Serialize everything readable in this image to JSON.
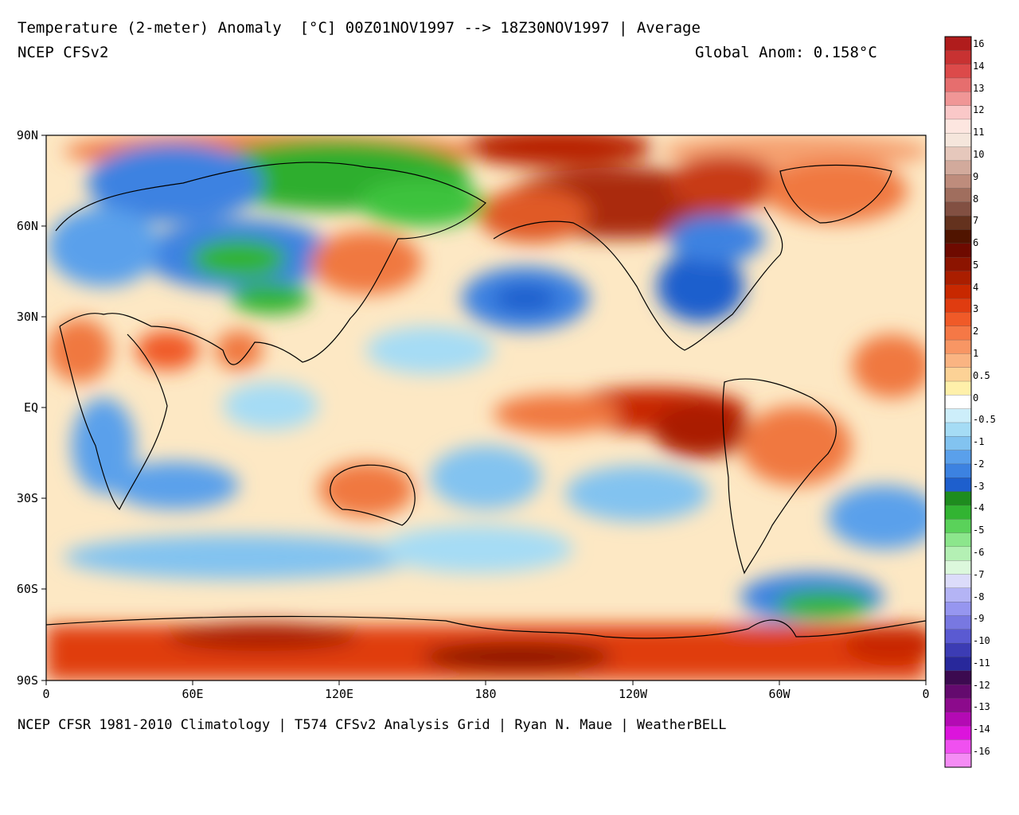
{
  "header": {
    "title": "Temperature (2-meter) Anomaly  [°C] 00Z01NOV1997 --> 18Z30NOV1997 | Average",
    "model": "NCEP CFSv2",
    "global_anom": "Global Anom: 0.158°C"
  },
  "footer": {
    "credits": "NCEP CFSR 1981-2010 Climatology | T574 CFSv2 Analysis Grid | Ryan N. Maue | WeatherBELL"
  },
  "map": {
    "projection": "equirectangular",
    "lon_range": [
      0,
      360
    ],
    "lat_range": [
      -90,
      90
    ],
    "lat_ticks": [
      "90N",
      "60N",
      "30N",
      "EQ",
      "30S",
      "60S",
      "90S"
    ],
    "lon_ticks": [
      "0",
      "60E",
      "120E",
      "180",
      "120W",
      "60W",
      "0"
    ]
  },
  "colorbar": {
    "labels": [
      "16",
      "14",
      "13",
      "12",
      "11",
      "10",
      "9",
      "8",
      "7",
      "6",
      "5",
      "4",
      "3",
      "2",
      "1",
      "0.5",
      "0",
      "-0.5",
      "-1",
      "-2",
      "-3",
      "-4",
      "-5",
      "-6",
      "-7",
      "-8",
      "-9",
      "-10",
      "-11",
      "-12",
      "-13",
      "-14",
      "-16"
    ],
    "colors": [
      "#b01c1c",
      "#c83232",
      "#dc4a4a",
      "#e66e6e",
      "#f09696",
      "#fac8c8",
      "#fde6e0",
      "#f5e6dc",
      "#e6c8bc",
      "#d2aa9c",
      "#be8c7c",
      "#a06e5e",
      "#825042",
      "#64321e",
      "#501400",
      "#6e0a00",
      "#8c1400",
      "#aa1e00",
      "#c82800",
      "#e03c10",
      "#f05a28",
      "#f57846",
      "#f89664",
      "#fab482",
      "#fcd296",
      "#fff0aa",
      "#ffffff",
      "#cdeefa",
      "#a5dcf5",
      "#82c3f0",
      "#5aa0eb",
      "#3c82e1",
      "#1e5fcd",
      "#1e8c1e",
      "#32b432",
      "#5ad25a",
      "#8ce68c",
      "#b4f0b4",
      "#dcf8dc",
      "#dcdcfa",
      "#b4b4f5",
      "#9696f0",
      "#7878e1",
      "#5a5ad2",
      "#3c3cb4",
      "#28289b",
      "#3c0a50",
      "#640a6e",
      "#8c0a8c",
      "#b40ab4",
      "#dc14dc",
      "#f050f0",
      "#f58cf5"
    ]
  }
}
